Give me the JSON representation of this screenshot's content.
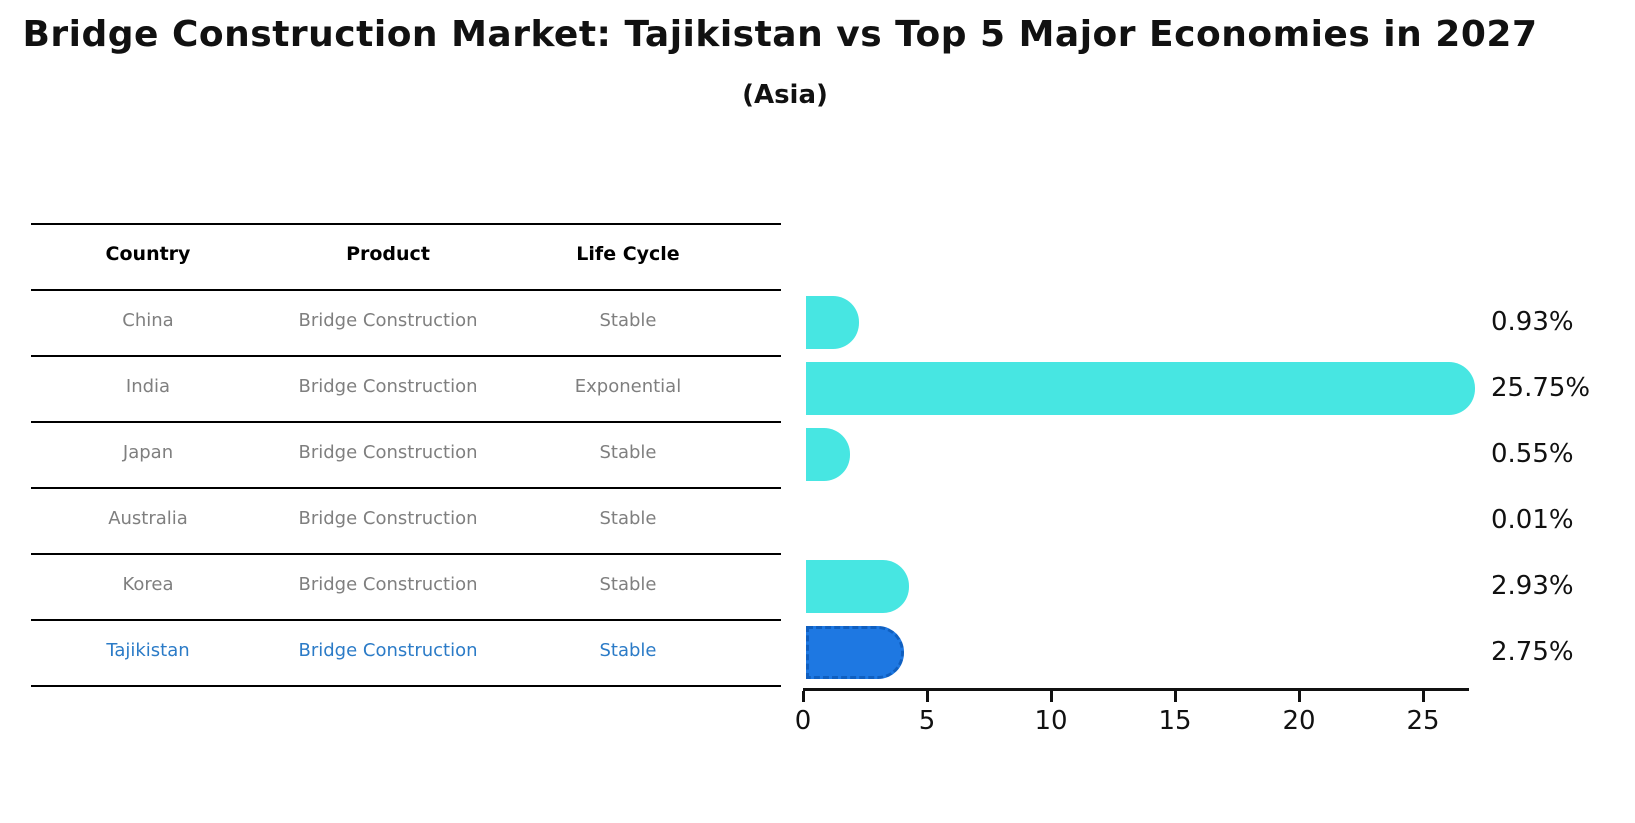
{
  "header": {
    "title": "Bridge Construction Market: Tajikistan vs Top 5 Major Economies in 2027",
    "subtitle": "(Asia)"
  },
  "table": {
    "columns": [
      "Country",
      "Product",
      "Life Cycle"
    ],
    "rows": [
      {
        "country": "China",
        "product": "Bridge Construction",
        "life_cycle": "Stable",
        "highlight": false
      },
      {
        "country": "India",
        "product": "Bridge Construction",
        "life_cycle": "Exponential",
        "highlight": false
      },
      {
        "country": "Japan",
        "product": "Bridge Construction",
        "life_cycle": "Stable",
        "highlight": false
      },
      {
        "country": "Australia",
        "product": "Bridge Construction",
        "life_cycle": "Stable",
        "highlight": false
      },
      {
        "country": "Korea",
        "product": "Bridge Construction",
        "life_cycle": "Stable",
        "highlight": false
      },
      {
        "country": "Tajikistan",
        "product": "Bridge Construction",
        "life_cycle": "Stable",
        "highlight": true
      }
    ]
  },
  "chart_data": {
    "type": "bar",
    "orientation": "horizontal",
    "title": "Bridge Construction Market: Tajikistan vs Top 5 Major Economies in 2027",
    "subtitle": "(Asia)",
    "categories": [
      "China",
      "India",
      "Japan",
      "Australia",
      "Korea",
      "Tajikistan"
    ],
    "values": [
      0.93,
      25.75,
      0.55,
      0.01,
      2.93,
      2.75
    ],
    "value_labels": [
      "0.93%",
      "25.75%",
      "0.55%",
      "0.01%",
      "2.93%",
      "2.75%"
    ],
    "x_ticks": [
      0,
      5,
      10,
      15,
      20,
      25
    ],
    "xlim": [
      0,
      26.8
    ],
    "grid": false,
    "legend": "none",
    "highlight_category": "Tajikistan",
    "colors": {
      "bar_default": "#47e6e2",
      "bar_highlight": "#1e78e2",
      "bar_highlight_border": "#0f5fc0",
      "highlight_text": "#2b7bc7",
      "row_text": "#7f7f7f",
      "axis": "#111111"
    }
  }
}
